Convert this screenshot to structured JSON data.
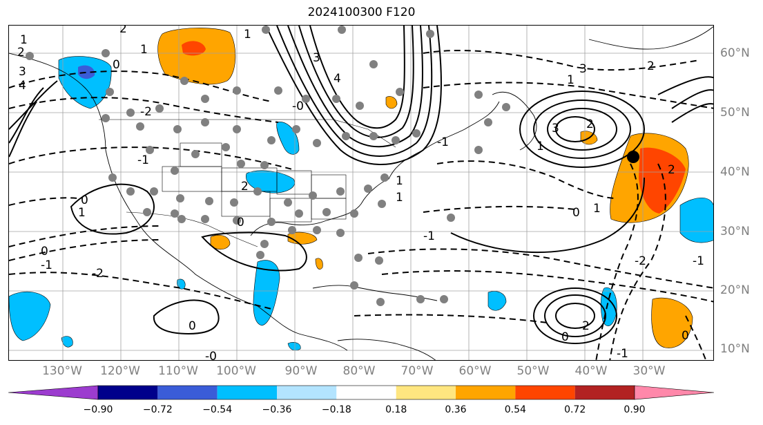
{
  "title": "2024100300 F120",
  "lon_labels": [
    "130°W",
    "120°W",
    "110°W",
    "100°W",
    "90°W",
    "80°W",
    "70°W",
    "60°W",
    "50°W",
    "40°W",
    "30°W"
  ],
  "lat_labels": [
    "60°N",
    "50°N",
    "40°N",
    "30°N",
    "20°N",
    "10°N"
  ],
  "colorbar": {
    "colors": [
      "#9c3ccf",
      "#00008b",
      "#3a5cd8",
      "#00bfff",
      "#b3e4ff",
      "#ffffff",
      "#ffe680",
      "#ffa500",
      "#ff4500",
      "#b22222",
      "#ff88aa"
    ],
    "ticks": [
      "−0.90",
      "−0.72",
      "−0.54",
      "−0.36",
      "−0.18",
      "0.18",
      "0.36",
      "0.54",
      "0.72",
      "0.90"
    ]
  },
  "contour_labels": [
    "1",
    "2",
    "3",
    "4",
    "0",
    "1",
    "2",
    "3",
    "4",
    "3",
    "2",
    "1",
    "3",
    "2",
    "1",
    "0",
    "1",
    "2",
    "1",
    "0",
    "2",
    "0",
    "-1",
    "0",
    "0",
    "1",
    "-0",
    "-1",
    "-2",
    "1",
    "0",
    "0",
    "-2",
    "-1",
    "-0",
    "-1",
    "-2",
    "-1",
    "1",
    "2",
    "-1"
  ]
}
